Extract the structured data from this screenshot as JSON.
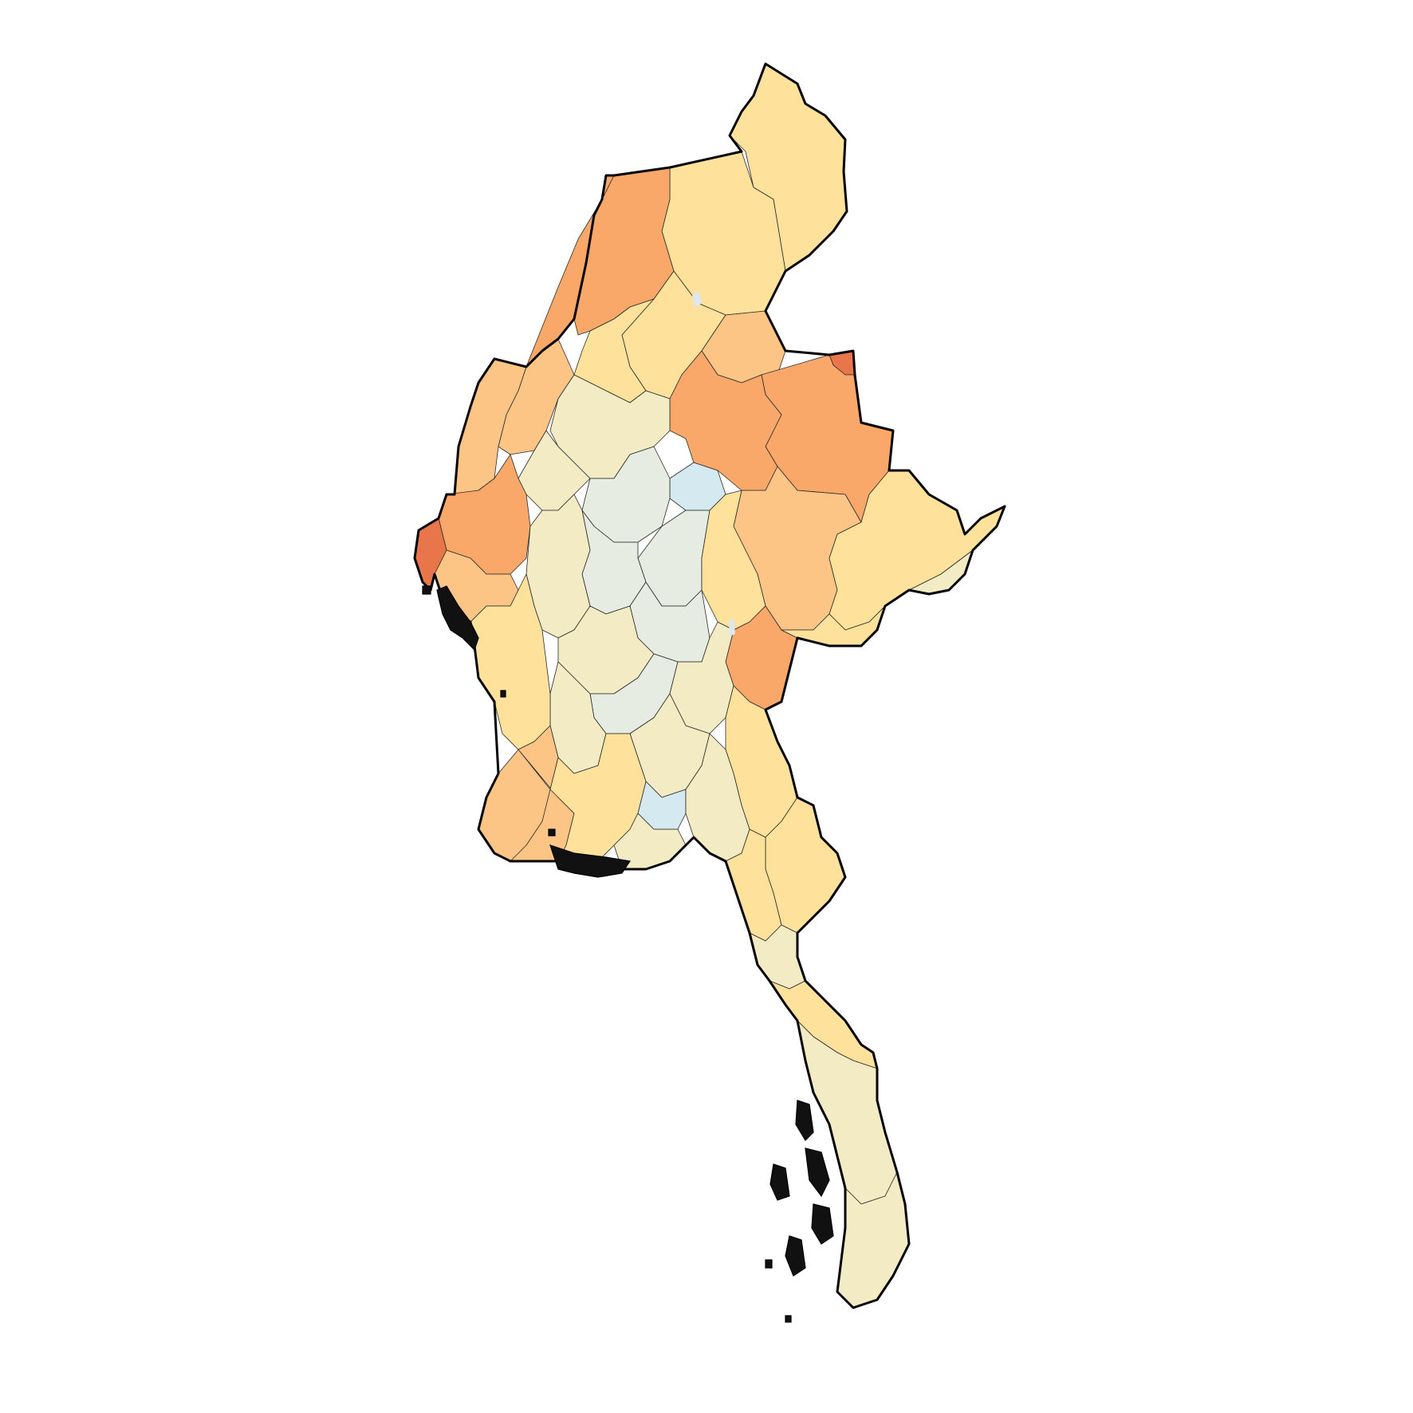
{
  "map": {
    "projection": "geographic",
    "region_class_colors": {
      "very_high": "#e9754a",
      "high": "#f9a86a",
      "mid_high": "#fdc585",
      "mid": "#fee19a",
      "neutral": "#f3ebc3",
      "low": "#e6ece2",
      "very_low": "#d5e9f0"
    },
    "outline_color": "#000000",
    "internal_border_color": "#2a2a2a",
    "background": "#ffffff",
    "region_count_shown": 63
  }
}
